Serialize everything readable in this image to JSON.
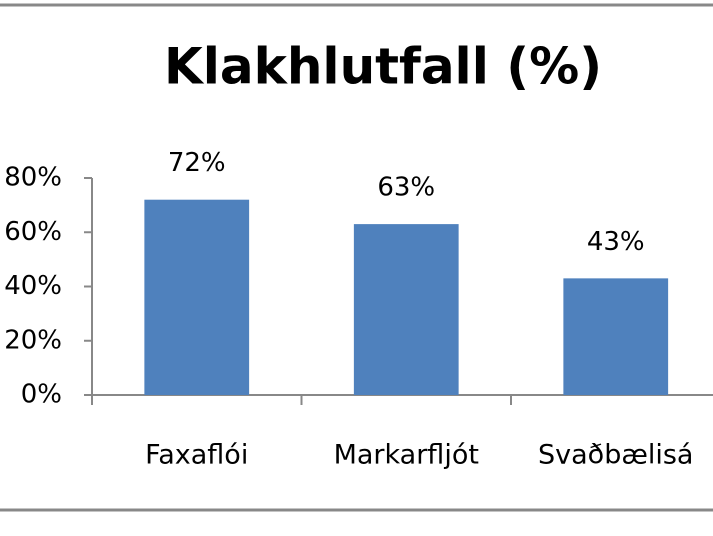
{
  "chart_data": {
    "type": "bar",
    "title": "Klakhlutfall (%)",
    "categories": [
      "Faxaflói",
      "Markarfljót",
      "Svaðbælisá"
    ],
    "values": [
      72,
      63,
      43
    ],
    "value_labels": [
      "72%",
      "63%",
      "43%"
    ],
    "color": "#4f81bd",
    "ylim": [
      0,
      80
    ],
    "yticks": [
      {
        "value": 0,
        "label": "0%"
      },
      {
        "value": 20,
        "label": "20%"
      },
      {
        "value": 40,
        "label": "40%"
      },
      {
        "value": 60,
        "label": "60%"
      },
      {
        "value": 80,
        "label": "80%"
      }
    ],
    "grid": false
  }
}
